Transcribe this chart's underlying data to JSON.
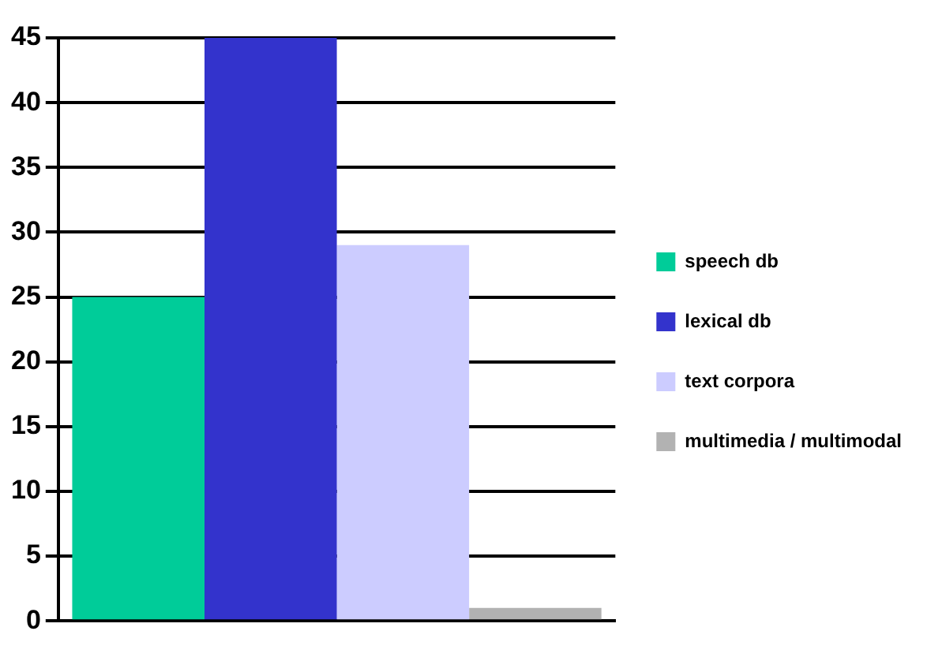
{
  "chart_data": {
    "type": "bar",
    "categories": [
      null
    ],
    "series": [
      {
        "name": "speech db",
        "color": "#00cc99",
        "values": [
          25
        ]
      },
      {
        "name": "lexical db",
        "color": "#3333cc",
        "values": [
          45
        ]
      },
      {
        "name": "text corpora",
        "color": "#ccccff",
        "values": [
          29
        ]
      },
      {
        "name": "multimedia / multimodal",
        "color": "#b2b2b2",
        "values": [
          1
        ]
      }
    ],
    "ylim": [
      0,
      45
    ],
    "yticks": [
      0,
      5,
      10,
      15,
      20,
      25,
      30,
      35,
      40,
      45
    ],
    "grid": "y",
    "legend": "right"
  }
}
